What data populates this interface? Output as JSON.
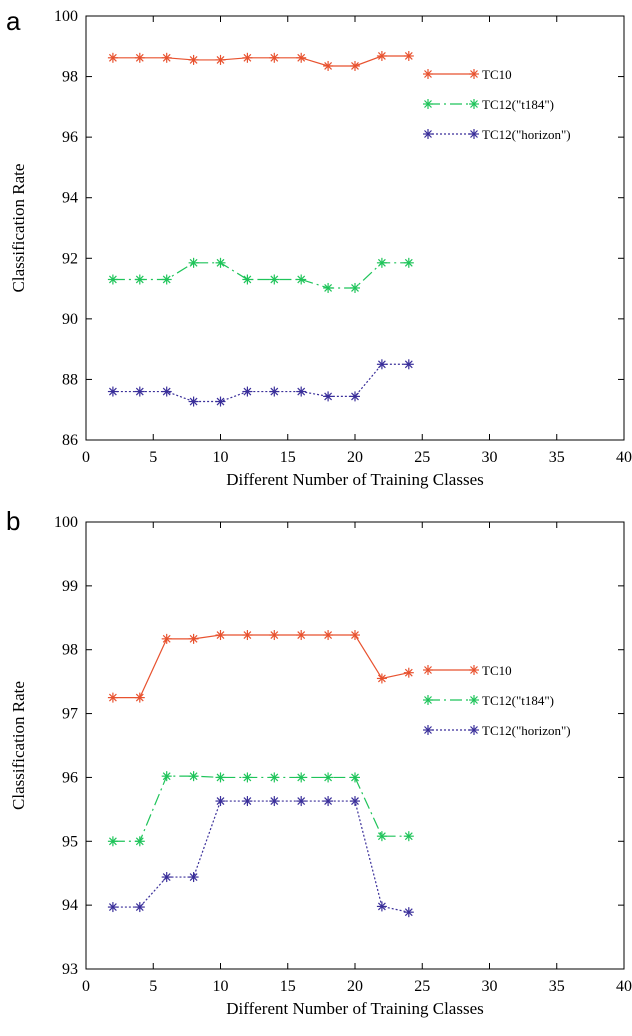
{
  "colors": {
    "TC10": "#e8522f",
    "TC12_t184": "#1fc45a",
    "TC12_horizon": "#3a2f9a"
  },
  "chart_data": [
    {
      "panel_label": "a",
      "type": "line",
      "xlabel": "Different Number of Training Classes",
      "ylabel": "Classification Rate",
      "xlim": [
        0,
        40
      ],
      "ylim": [
        86,
        100
      ],
      "xticks": [
        0,
        5,
        10,
        15,
        20,
        25,
        30,
        35,
        40
      ],
      "yticks": [
        86,
        88,
        90,
        92,
        94,
        96,
        98,
        100
      ],
      "grid": false,
      "legend_position": "top-right",
      "x": [
        2,
        4,
        6,
        8,
        10,
        12,
        14,
        16,
        18,
        20,
        22,
        24
      ],
      "series": [
        {
          "name": "TC10",
          "style": "solid",
          "color": "#e8522f",
          "values": [
            98.62,
            98.62,
            98.62,
            98.55,
            98.55,
            98.62,
            98.62,
            98.62,
            98.35,
            98.35,
            98.68,
            98.68
          ]
        },
        {
          "name": "TC12(\"t184\")",
          "style": "dashdot",
          "color": "#1fc45a",
          "values": [
            91.3,
            91.3,
            91.3,
            91.85,
            91.85,
            91.3,
            91.3,
            91.3,
            91.02,
            91.02,
            91.85,
            91.85
          ]
        },
        {
          "name": "TC12(\"horizon\")",
          "style": "dotted",
          "color": "#3a2f9a",
          "values": [
            87.6,
            87.6,
            87.6,
            87.27,
            87.27,
            87.6,
            87.6,
            87.6,
            87.44,
            87.44,
            88.5,
            88.5
          ]
        }
      ]
    },
    {
      "panel_label": "b",
      "type": "line",
      "xlabel": "Different Number of Training Classes",
      "ylabel": "Classification Rate",
      "xlim": [
        0,
        40
      ],
      "ylim": [
        93,
        100
      ],
      "xticks": [
        0,
        5,
        10,
        15,
        20,
        25,
        30,
        35,
        40
      ],
      "yticks": [
        93,
        94,
        95,
        96,
        97,
        98,
        99,
        100
      ],
      "grid": false,
      "legend_position": "right",
      "x": [
        2,
        4,
        6,
        8,
        10,
        12,
        14,
        16,
        18,
        20,
        22,
        24
      ],
      "series": [
        {
          "name": "TC10",
          "style": "solid",
          "color": "#e8522f",
          "values": [
            97.25,
            97.25,
            98.17,
            98.17,
            98.23,
            98.23,
            98.23,
            98.23,
            98.23,
            98.23,
            97.55,
            97.64
          ]
        },
        {
          "name": "TC12(\"t184\")",
          "style": "dashdot",
          "color": "#1fc45a",
          "values": [
            95.0,
            95.0,
            96.02,
            96.02,
            96.0,
            96.0,
            96.0,
            96.0,
            96.0,
            96.0,
            95.08,
            95.08
          ]
        },
        {
          "name": "TC12(\"horizon\")",
          "style": "dotted",
          "color": "#3a2f9a",
          "values": [
            93.97,
            93.97,
            94.44,
            94.44,
            95.63,
            95.63,
            95.63,
            95.63,
            95.63,
            95.63,
            93.98,
            93.89
          ]
        }
      ]
    }
  ]
}
